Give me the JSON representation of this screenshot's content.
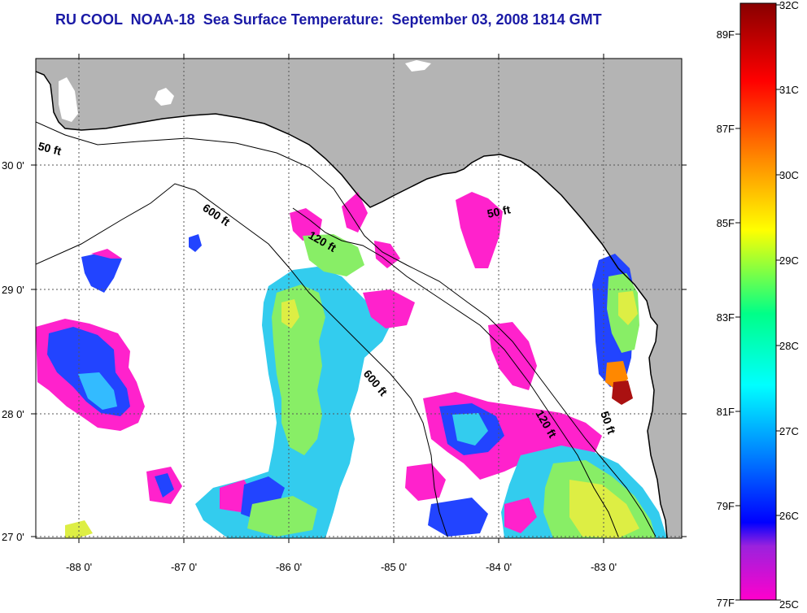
{
  "title": "RU COOL  NOAA-18  Sea Surface Temperature:  September 03, 2008 1814 GMT",
  "map": {
    "lat_labels": [
      "30 0'",
      "29 0'",
      "28 0'",
      "27 0'"
    ],
    "lon_labels": [
      "-88 0'",
      "-87 0'",
      "-86 0'",
      "-85 0'",
      "-84 0'",
      "-83 0'"
    ],
    "contour_labels": [
      "50 ft",
      "600 ft",
      "120 ft",
      "50 ft",
      "600 ft",
      "120 ft",
      "50 ft"
    ],
    "land_color": "#b4b4b4",
    "ocean_no_data_color": "#ffffff"
  },
  "colorbar": {
    "celsius_labels": [
      "32C",
      "31C",
      "30C",
      "29C",
      "28C",
      "27C",
      "26C",
      "25C"
    ],
    "fahrenheit_labels": [
      "89F",
      "87F",
      "85F",
      "83F",
      "81F",
      "79F",
      "77F"
    ],
    "colors": [
      "#ff00cc",
      "#8822dd",
      "#0000ff",
      "#0088ff",
      "#00ffff",
      "#00ff88",
      "#ffff00",
      "#ff8800",
      "#ff0000",
      "#880000"
    ]
  }
}
